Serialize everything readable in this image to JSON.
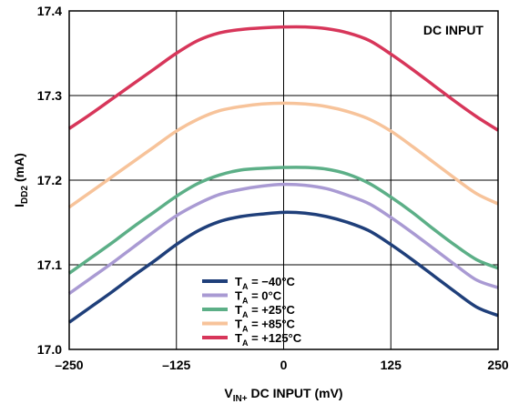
{
  "chart_data": {
    "type": "line",
    "title": "",
    "annotation": "DC INPUT",
    "xlabel": {
      "main": "V",
      "sub": "IN+",
      "rest": " DC INPUT (mV)"
    },
    "ylabel": {
      "main": "I",
      "sub": "DD2",
      "rest": " (mA)"
    },
    "xlim": [
      -250,
      250
    ],
    "ylim": [
      17.0,
      17.4
    ],
    "x_ticks": [
      -250,
      -125,
      0,
      125,
      250
    ],
    "x_tick_labels": [
      "–250",
      "–125",
      "0",
      "125",
      "250"
    ],
    "y_ticks": [
      17.0,
      17.1,
      17.2,
      17.3,
      17.4
    ],
    "y_tick_labels": [
      "17.0",
      "17.1",
      "17.2",
      "17.3",
      "17.4"
    ],
    "grid": true,
    "legend_position": "bottom-center",
    "x": [
      -250,
      -225,
      -200,
      -175,
      -150,
      -125,
      -100,
      -75,
      -50,
      -25,
      0,
      25,
      50,
      75,
      100,
      125,
      150,
      175,
      200,
      225,
      250
    ],
    "series": [
      {
        "name": "T",
        "sub": "A",
        "suffix": " = −40°C",
        "color": "#1f3f7a",
        "values": [
          17.032,
          17.05,
          17.068,
          17.087,
          17.105,
          17.124,
          17.14,
          17.151,
          17.157,
          17.16,
          17.162,
          17.161,
          17.157,
          17.15,
          17.14,
          17.124,
          17.106,
          17.087,
          17.068,
          17.05,
          17.04
        ]
      },
      {
        "name": "T",
        "sub": "A",
        "suffix": " = 0°C",
        "color": "#a99ad3",
        "values": [
          17.066,
          17.084,
          17.102,
          17.121,
          17.14,
          17.158,
          17.172,
          17.183,
          17.189,
          17.193,
          17.195,
          17.194,
          17.19,
          17.182,
          17.172,
          17.156,
          17.138,
          17.119,
          17.1,
          17.082,
          17.073
        ]
      },
      {
        "name": "T",
        "sub": "A",
        "suffix": " = +25°C",
        "color": "#5caf87",
        "values": [
          17.09,
          17.108,
          17.126,
          17.145,
          17.163,
          17.181,
          17.196,
          17.206,
          17.212,
          17.214,
          17.215,
          17.215,
          17.213,
          17.207,
          17.196,
          17.18,
          17.162,
          17.142,
          17.123,
          17.106,
          17.096
        ]
      },
      {
        "name": "T",
        "sub": "A",
        "suffix": " = +85°C",
        "color": "#f7c39a",
        "values": [
          17.168,
          17.186,
          17.204,
          17.222,
          17.24,
          17.258,
          17.272,
          17.282,
          17.287,
          17.29,
          17.291,
          17.29,
          17.287,
          17.281,
          17.272,
          17.258,
          17.24,
          17.221,
          17.202,
          17.184,
          17.172
        ]
      },
      {
        "name": "T",
        "sub": "A",
        "suffix": " = +125°C",
        "color": "#d7365a",
        "values": [
          17.261,
          17.278,
          17.296,
          17.314,
          17.332,
          17.35,
          17.365,
          17.374,
          17.378,
          17.38,
          17.381,
          17.381,
          17.379,
          17.374,
          17.365,
          17.349,
          17.331,
          17.312,
          17.293,
          17.275,
          17.259
        ]
      }
    ]
  }
}
